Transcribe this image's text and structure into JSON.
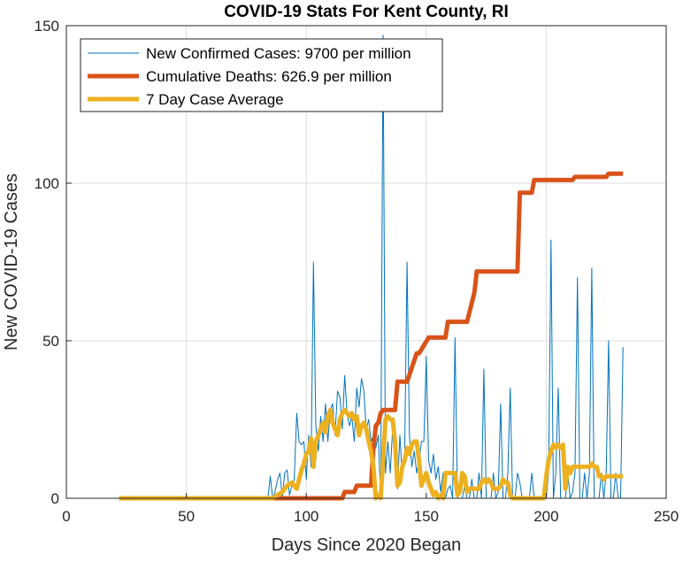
{
  "chart_data": {
    "type": "line",
    "title": "COVID-19 Stats For Kent County, RI",
    "xlabel": "Days Since 2020 Began",
    "ylabel": "New COVID-19 Cases",
    "xlim": [
      0,
      250
    ],
    "ylim": [
      0,
      150
    ],
    "xticks": [
      0,
      50,
      100,
      150,
      200,
      250
    ],
    "yticks": [
      0,
      50,
      100,
      150
    ],
    "grid": true,
    "legend_position": "top-left",
    "colors": {
      "new_cases": "#0072BD",
      "cumulative_deaths": "#D95319",
      "seven_day_avg": "#EDB120",
      "axis": "#262626",
      "grid": "#dcdcdc"
    },
    "series": [
      {
        "name": "New Confirmed Cases: 9700 per million",
        "key": "new_cases",
        "x": [
          22,
          84,
          85,
          86,
          87,
          88,
          89,
          90,
          91,
          92,
          93,
          94,
          95,
          96,
          97,
          98,
          99,
          100,
          101,
          102,
          103,
          104,
          105,
          106,
          107,
          108,
          109,
          110,
          111,
          112,
          113,
          114,
          115,
          116,
          117,
          118,
          119,
          120,
          121,
          122,
          123,
          124,
          125,
          126,
          127,
          128,
          129,
          130,
          131,
          132,
          133,
          134,
          135,
          136,
          137,
          138,
          139,
          140,
          141,
          142,
          143,
          144,
          145,
          146,
          147,
          148,
          149,
          150,
          151,
          152,
          153,
          154,
          155,
          156,
          157,
          158,
          159,
          160,
          161,
          162,
          163,
          164,
          165,
          166,
          167,
          168,
          169,
          170,
          171,
          172,
          173,
          174,
          175,
          176,
          177,
          178,
          179,
          180,
          181,
          182,
          183,
          184,
          185,
          186,
          187,
          188,
          189,
          190,
          191,
          192,
          193,
          194,
          195,
          196,
          197,
          198,
          199,
          200,
          201,
          202,
          203,
          204,
          205,
          206,
          207,
          208,
          209,
          210,
          211,
          212,
          213,
          214,
          215,
          216,
          217,
          218,
          219,
          220,
          221,
          222,
          223,
          224,
          225,
          226,
          227,
          228,
          229,
          230,
          231,
          232
        ],
        "values": [
          0,
          0,
          7,
          0,
          2,
          6,
          8,
          0,
          8,
          9,
          1,
          4,
          6,
          27,
          18,
          17,
          18,
          6,
          20,
          10,
          75,
          23,
          15,
          26,
          18,
          30,
          18,
          28,
          30,
          20,
          34,
          32,
          22,
          39,
          27,
          23,
          26,
          18,
          35,
          29,
          38,
          34,
          22,
          25,
          18,
          20,
          16,
          20,
          0,
          147,
          8,
          18,
          8,
          22,
          14,
          3,
          20,
          7,
          14,
          75,
          20,
          10,
          15,
          8,
          12,
          18,
          18,
          45,
          12,
          8,
          14,
          6,
          10,
          2,
          8,
          0,
          3,
          4,
          0,
          51,
          0,
          0,
          0,
          4,
          0,
          0,
          6,
          0,
          0,
          8,
          0,
          41,
          0,
          0,
          0,
          8,
          0,
          2,
          30,
          0,
          0,
          8,
          35,
          0,
          0,
          8,
          5,
          0,
          0,
          0,
          0,
          8,
          0,
          0,
          0,
          0,
          0,
          0,
          8,
          82,
          0,
          8,
          35,
          0,
          0,
          0,
          8,
          0,
          2,
          8,
          70,
          0,
          0,
          8,
          0,
          8,
          73,
          0,
          0,
          0,
          8,
          0,
          8,
          50,
          0,
          0,
          8,
          0,
          0,
          48
        ],
        "line_width": 1
      },
      {
        "name": "Cumulative Deaths: 626.9 per million",
        "key": "cumulative_deaths",
        "x": [
          22,
          95,
          109,
          110,
          115,
          116,
          120,
          121,
          127,
          128,
          129,
          130,
          131,
          132,
          137,
          138,
          141,
          142,
          146,
          147,
          151,
          152,
          158,
          159,
          166,
          167,
          169,
          170,
          170.5,
          171,
          187,
          188,
          189,
          190,
          194,
          195,
          200,
          201,
          210,
          211,
          212,
          213,
          220,
          221,
          225,
          226,
          232
        ],
        "values": [
          0,
          0,
          0,
          0,
          0,
          2,
          2,
          4,
          4,
          16,
          23,
          24,
          27,
          28,
          28,
          37,
          37,
          37,
          46,
          46,
          51,
          51,
          51,
          56,
          56,
          56,
          62,
          65,
          68,
          72,
          72,
          72,
          97,
          97,
          97,
          101,
          101,
          101,
          101,
          101,
          102,
          102,
          102,
          102,
          102,
          103,
          103
        ],
        "line_width": 5
      },
      {
        "name": "7 Day Case Average",
        "key": "seven_day_avg",
        "x": [
          22,
          84,
          86,
          88,
          90,
          92,
          94,
          96,
          97,
          98,
          99,
          100,
          101,
          102,
          103,
          104,
          105,
          106,
          107,
          108,
          109,
          110,
          111,
          112,
          113,
          114,
          115,
          116,
          117,
          118,
          119,
          120,
          121,
          122,
          123,
          124,
          125,
          126,
          127,
          128,
          129,
          130,
          131,
          132,
          133,
          134,
          135,
          136,
          137,
          138,
          139,
          140,
          141,
          142,
          143,
          144,
          145,
          146,
          147,
          148,
          149,
          150,
          151,
          152,
          153,
          154,
          155,
          156,
          157,
          158,
          159,
          160,
          161,
          162,
          163,
          164,
          165,
          166,
          167,
          168,
          169,
          170,
          171,
          172,
          173,
          174,
          175,
          176,
          177,
          178,
          179,
          180,
          181,
          182,
          183,
          184,
          185,
          186,
          187,
          188,
          189,
          190,
          191,
          192,
          193,
          194,
          195,
          196,
          197,
          198,
          199,
          200,
          201,
          202,
          203,
          204,
          205,
          206,
          207,
          208,
          209,
          210,
          211,
          212,
          213,
          214,
          215,
          216,
          217,
          218,
          219,
          220,
          221,
          222,
          223,
          224,
          225,
          226,
          227,
          228,
          229,
          230,
          231,
          232
        ],
        "values": [
          0,
          0,
          0,
          1,
          2,
          4,
          5,
          3,
          6,
          9,
          11,
          14,
          15,
          19,
          10,
          18,
          20,
          22,
          24,
          21,
          26,
          28,
          24,
          22,
          20,
          25,
          27,
          28,
          27,
          26,
          27,
          25,
          26,
          20,
          23,
          24,
          22,
          18,
          15,
          10,
          0,
          1,
          0,
          12,
          25,
          26,
          25,
          25,
          18,
          4,
          5,
          10,
          12,
          16,
          14,
          17,
          18,
          18,
          12,
          4,
          6,
          8,
          5,
          3,
          1,
          2,
          0,
          1,
          0,
          8,
          8,
          8,
          8,
          8,
          1,
          2,
          8,
          7,
          2,
          3,
          3,
          3,
          3,
          3,
          5,
          6,
          5,
          6,
          5,
          3,
          3,
          3,
          4,
          6,
          5,
          5,
          1,
          0,
          0,
          0,
          0,
          0,
          0,
          0,
          0,
          0,
          0,
          0,
          0,
          0,
          0,
          7,
          12,
          15,
          17,
          16,
          17,
          16,
          17,
          3,
          10,
          8,
          10,
          10,
          10,
          10,
          10,
          10,
          10,
          10,
          11,
          10,
          10,
          7,
          7,
          6,
          7,
          7,
          7,
          7,
          7,
          7,
          7,
          7
        ],
        "line_width": 5
      }
    ]
  }
}
